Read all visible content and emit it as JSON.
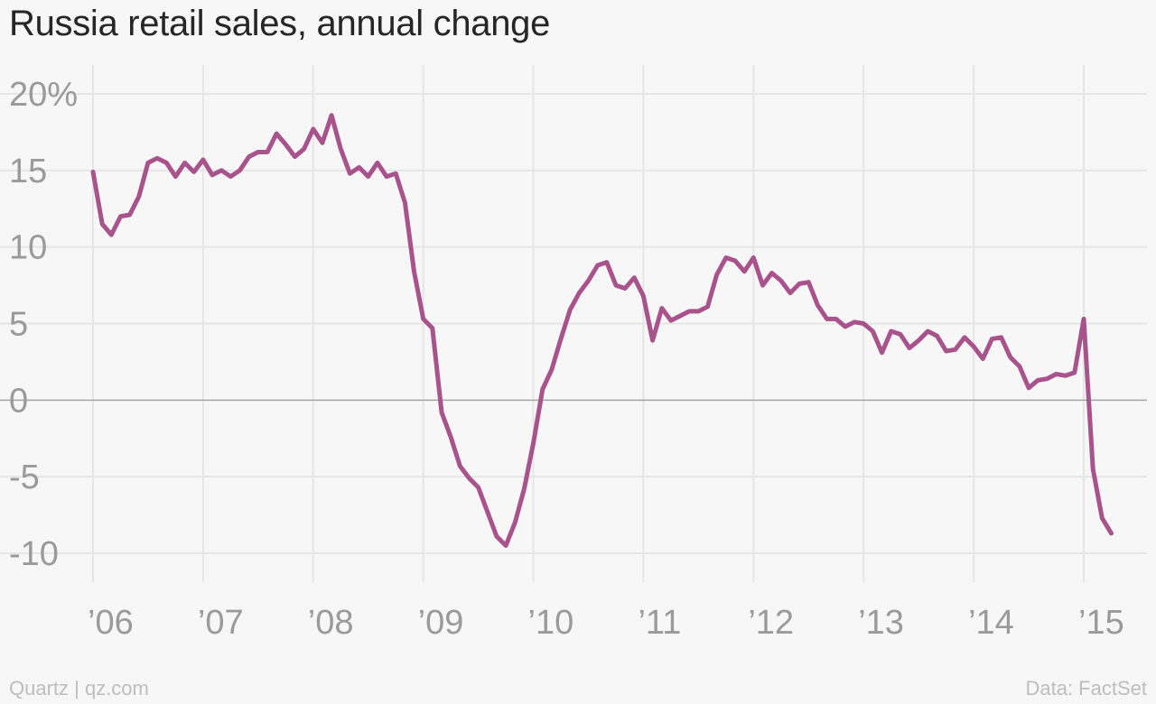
{
  "chart_data": {
    "type": "line",
    "title": "Russia retail sales, annual change",
    "xlabel": "",
    "ylabel": "",
    "ylim": [
      -12,
      21
    ],
    "xlim": [
      2005.9,
      2015.6
    ],
    "grid": true,
    "y_ticks": [
      {
        "value": 20,
        "label": "20%"
      },
      {
        "value": 15,
        "label": "15"
      },
      {
        "value": 10,
        "label": "10"
      },
      {
        "value": 5,
        "label": "5"
      },
      {
        "value": 0,
        "label": "0"
      },
      {
        "value": -5,
        "label": "-5"
      },
      {
        "value": -10,
        "label": "-10"
      }
    ],
    "x_ticks": [
      {
        "value": 2006,
        "label": "’06"
      },
      {
        "value": 2007,
        "label": "’07"
      },
      {
        "value": 2008,
        "label": "’08"
      },
      {
        "value": 2009,
        "label": "’09"
      },
      {
        "value": 2010,
        "label": "’10"
      },
      {
        "value": 2011,
        "label": "’11"
      },
      {
        "value": 2012,
        "label": "’12"
      },
      {
        "value": 2013,
        "label": "’13"
      },
      {
        "value": 2014,
        "label": "’14"
      },
      {
        "value": 2015,
        "label": "’15"
      }
    ],
    "series": [
      {
        "name": "",
        "color": "#a8538c",
        "start": "2006-01",
        "frequency": "monthly",
        "values": [
          14.9,
          11.5,
          10.8,
          12.0,
          12.1,
          13.3,
          15.5,
          15.8,
          15.5,
          14.6,
          15.5,
          14.9,
          15.7,
          14.7,
          15.0,
          14.6,
          15.0,
          15.9,
          16.2,
          16.2,
          17.4,
          16.7,
          15.9,
          16.4,
          17.7,
          16.8,
          18.6,
          16.4,
          14.8,
          15.2,
          14.6,
          15.5,
          14.6,
          14.8,
          12.9,
          8.4,
          5.3,
          4.7,
          -0.8,
          -2.4,
          -4.3,
          -5.1,
          -5.7,
          -7.3,
          -8.9,
          -9.5,
          -8.0,
          -5.8,
          -2.8,
          0.7,
          2.0,
          4.0,
          5.9,
          7.0,
          7.8,
          8.8,
          9.0,
          7.5,
          7.3,
          8.0,
          6.8,
          3.9,
          6.0,
          5.2,
          5.5,
          5.8,
          5.8,
          6.1,
          8.2,
          9.3,
          9.1,
          8.4,
          9.3,
          7.5,
          8.3,
          7.8,
          7.0,
          7.6,
          7.7,
          6.2,
          5.3,
          5.3,
          4.8,
          5.1,
          5.0,
          4.5,
          3.1,
          4.5,
          4.3,
          3.4,
          3.9,
          4.5,
          4.2,
          3.2,
          3.3,
          4.1,
          3.5,
          2.7,
          4.0,
          4.1,
          2.8,
          2.2,
          0.8,
          1.3,
          1.4,
          1.7,
          1.6,
          1.8,
          5.3,
          -4.5,
          -7.7,
          -8.7
        ]
      }
    ]
  },
  "footer": {
    "left": "Quartz | qz.com",
    "right": "Data: FactSet"
  }
}
